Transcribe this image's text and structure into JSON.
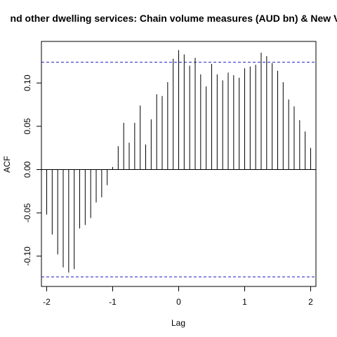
{
  "chart_data": {
    "type": "bar",
    "title": "nd other dwelling services: Chain volume measures (AUD bn) & New Ve",
    "xlabel": "Lag",
    "ylabel": "ACF",
    "xlim": [
      -2.08,
      2.08
    ],
    "ylim": [
      -0.135,
      0.148
    ],
    "x_ticks": [
      -2,
      -1,
      0,
      1,
      2
    ],
    "x_tick_labels": [
      "-2",
      "-1",
      "0",
      "1",
      "2"
    ],
    "y_ticks": [
      -0.1,
      -0.05,
      0.0,
      0.05,
      0.1
    ],
    "y_tick_labels": [
      "-0.10",
      "-0.05",
      "0.00",
      "0.05",
      "0.10"
    ],
    "confidence_bound": 0.124,
    "colors": {
      "bars": "#000000",
      "confidence": "#2020c0",
      "zero_line": "#000000"
    },
    "lags": [
      -2.0,
      -1.9167,
      -1.8333,
      -1.75,
      -1.6667,
      -1.5833,
      -1.5,
      -1.4167,
      -1.3333,
      -1.25,
      -1.1667,
      -1.0833,
      -1.0,
      -0.9167,
      -0.8333,
      -0.75,
      -0.6667,
      -0.5833,
      -0.5,
      -0.4167,
      -0.3333,
      -0.25,
      -0.1667,
      -0.0833,
      0.0,
      0.0833,
      0.1667,
      0.25,
      0.3333,
      0.4167,
      0.5,
      0.5833,
      0.6667,
      0.75,
      0.8333,
      0.9167,
      1.0,
      1.0833,
      1.1667,
      1.25,
      1.3333,
      1.4167,
      1.5,
      1.5833,
      1.6667,
      1.75,
      1.8333,
      1.9167,
      2.0
    ],
    "values": [
      -0.052,
      -0.075,
      -0.098,
      -0.113,
      -0.119,
      -0.115,
      -0.068,
      -0.064,
      -0.056,
      -0.038,
      -0.032,
      -0.018,
      0.003,
      0.027,
      0.054,
      0.031,
      0.054,
      0.074,
      0.029,
      0.058,
      0.087,
      0.085,
      0.101,
      0.128,
      0.138,
      0.133,
      0.12,
      0.129,
      0.11,
      0.096,
      0.122,
      0.11,
      0.103,
      0.112,
      0.109,
      0.106,
      0.117,
      0.119,
      0.121,
      0.135,
      0.131,
      0.123,
      0.114,
      0.101,
      0.081,
      0.073,
      0.057,
      0.044,
      0.025
    ]
  }
}
